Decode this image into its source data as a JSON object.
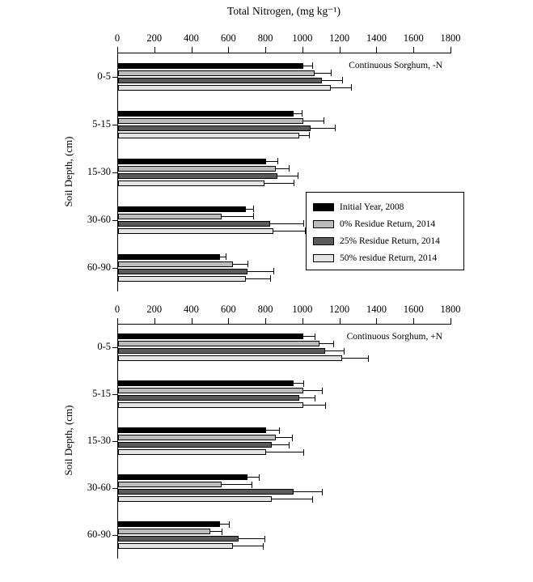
{
  "figure_title": "Total Nitrogen, (mg kg⁻¹)",
  "chart_data": [
    {
      "type": "bar",
      "orientation": "horizontal",
      "annotation": "Continuous Sorghum, -N",
      "xlabel": "Total Nitrogen, (mg kg-1)",
      "ylabel": "Soil Depth, (cm)",
      "xlim": [
        0,
        1800
      ],
      "xticks": [
        0,
        200,
        400,
        600,
        800,
        1000,
        1200,
        1400,
        1600,
        1800
      ],
      "categories": [
        "0-5",
        "5-15",
        "15-30",
        "30-60",
        "60-90"
      ],
      "legend_position": "inside-right",
      "series": [
        {
          "name": "Initial Year, 2008",
          "color": "#000000",
          "values": [
            1000,
            950,
            800,
            690,
            550
          ],
          "errors": [
            50,
            40,
            60,
            40,
            30
          ]
        },
        {
          "name": "0% Residue Return, 2014",
          "color": "#bcbcbc",
          "values": [
            1060,
            1000,
            850,
            560,
            620
          ],
          "errors": [
            90,
            110,
            70,
            170,
            80
          ]
        },
        {
          "name": "25% Residue Return, 2014",
          "color": "#5a5a5a",
          "values": [
            1100,
            1040,
            860,
            820,
            700
          ],
          "errors": [
            110,
            130,
            110,
            180,
            140
          ]
        },
        {
          "name": "50% residue Return, 2014",
          "color": "#e4e4e4",
          "values": [
            1150,
            980,
            790,
            840,
            690
          ],
          "errors": [
            110,
            50,
            160,
            170,
            130
          ]
        }
      ]
    },
    {
      "type": "bar",
      "orientation": "horizontal",
      "annotation": "Continuous Sorghum, +N",
      "xlabel": "Total Nitrogen, (mg kg-1)",
      "ylabel": "Soil Depth, (cm)",
      "xlim": [
        0,
        1800
      ],
      "xticks": [
        0,
        200,
        400,
        600,
        800,
        1000,
        1200,
        1400,
        1600,
        1800
      ],
      "categories": [
        "0-5",
        "5-15",
        "15-30",
        "30-60",
        "60-90"
      ],
      "legend_position": "none",
      "series": [
        {
          "name": "Initial Year, 2008",
          "color": "#000000",
          "values": [
            1000,
            950,
            800,
            700,
            550
          ],
          "errors": [
            60,
            50,
            70,
            60,
            50
          ]
        },
        {
          "name": "0% Residue Return, 2014",
          "color": "#bcbcbc",
          "values": [
            1090,
            1000,
            850,
            560,
            500
          ],
          "errors": [
            70,
            100,
            90,
            160,
            60
          ]
        },
        {
          "name": "25% Residue Return, 2014",
          "color": "#5a5a5a",
          "values": [
            1120,
            980,
            830,
            950,
            650
          ],
          "errors": [
            100,
            80,
            90,
            150,
            140
          ]
        },
        {
          "name": "50% residue Return, 2014",
          "color": "#e4e4e4",
          "values": [
            1210,
            1000,
            800,
            830,
            620
          ],
          "errors": [
            140,
            120,
            200,
            220,
            160
          ]
        }
      ]
    }
  ]
}
